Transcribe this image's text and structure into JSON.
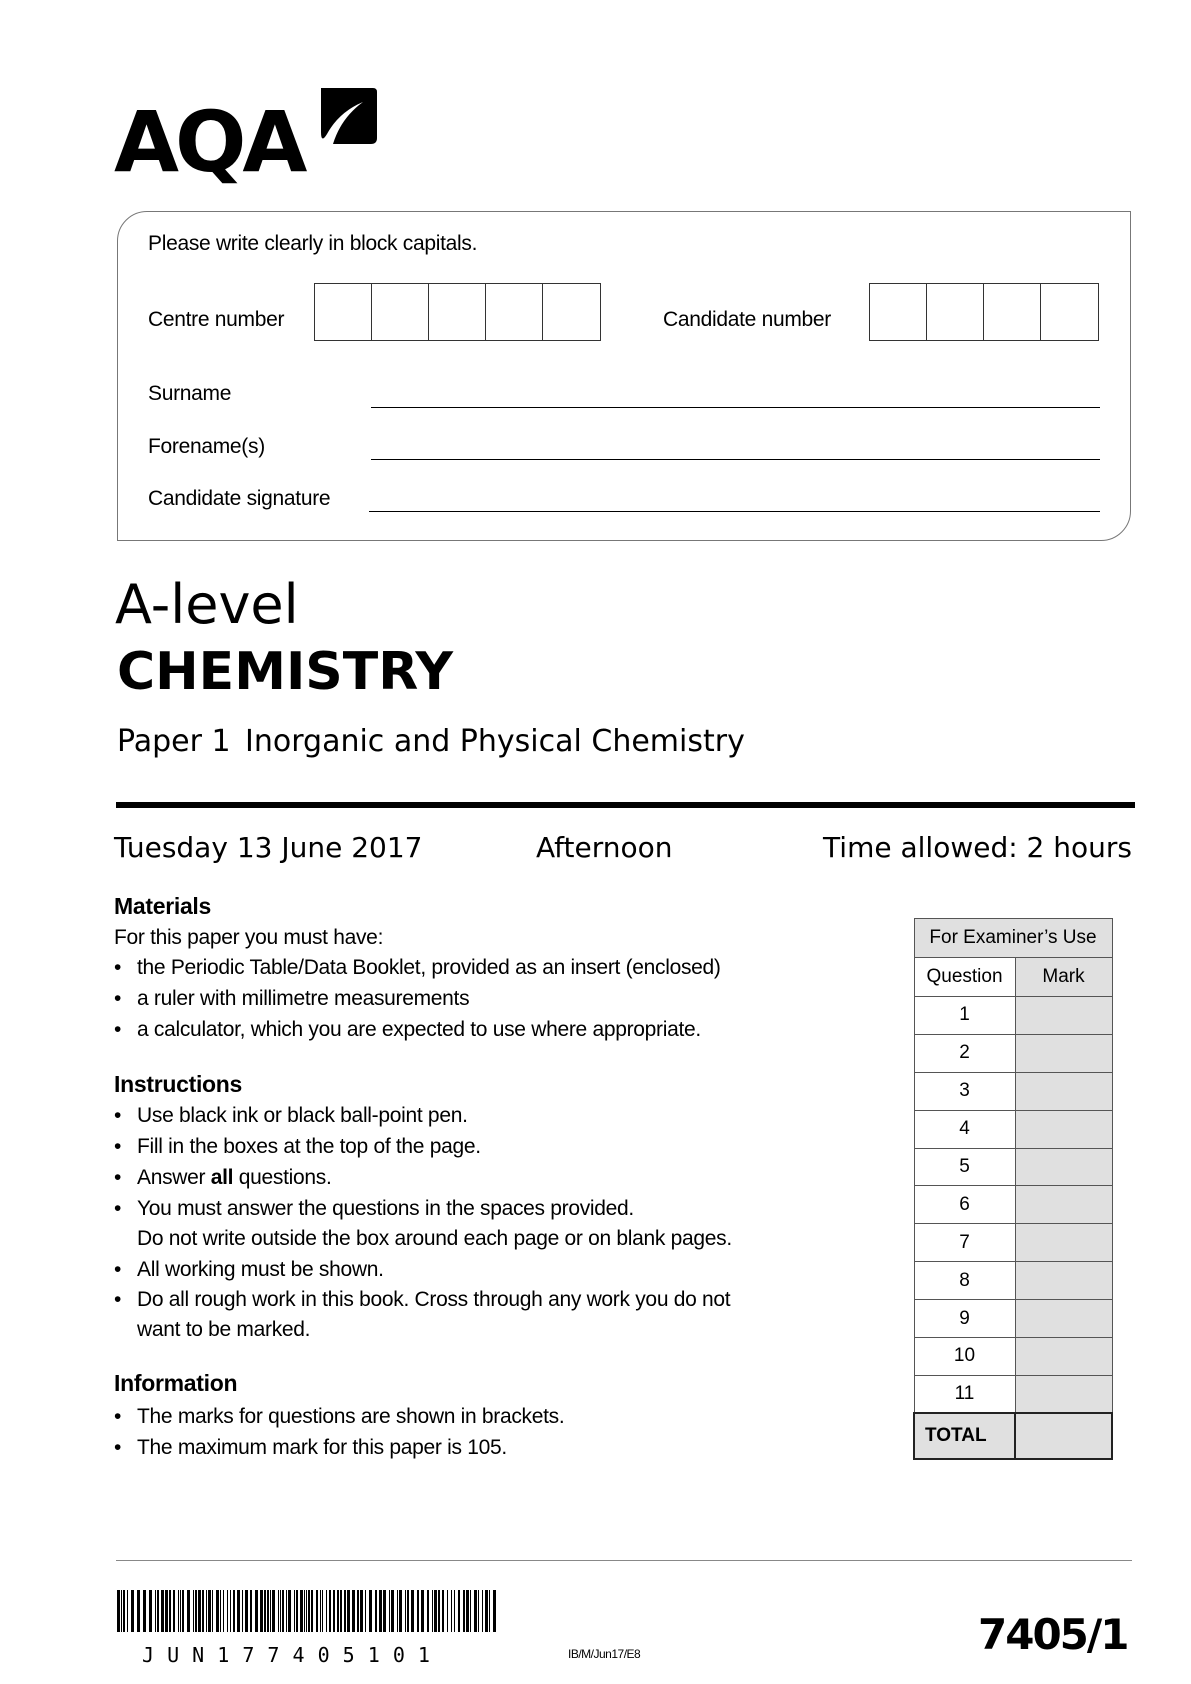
{
  "logo": {
    "text": "AQA"
  },
  "form": {
    "instruction": "Please write clearly in block capitals.",
    "centre_number_label": "Centre number",
    "candidate_number_label": "Candidate number",
    "surname_label": "Surname",
    "forenames_label": "Forename(s)",
    "signature_label": "Candidate signature"
  },
  "title": {
    "level": "A-level",
    "subject": "CHEMISTRY",
    "paper": "Paper 1",
    "paper_name": "Inorganic and Physical Chemistry"
  },
  "session": {
    "date": "Tuesday 13 June 2017",
    "time_of_day": "Afternoon",
    "time_allowed": "Time allowed: 2 hours"
  },
  "materials": {
    "heading": "Materials",
    "intro": "For this paper you must have:",
    "items": [
      "the Periodic Table/Data Booklet, provided as an insert (enclosed)",
      "a ruler with millimetre measurements",
      "a calculator, which you are expected to use where appropriate."
    ]
  },
  "instructions": {
    "heading": "Instructions",
    "items": [
      "Use black ink or black ball-point pen.",
      "Fill in the boxes at the top of the page.",
      {
        "pre": "Answer ",
        "bold": "all",
        "post": " questions."
      },
      "You must answer the questions in the spaces provided.",
      "Do not write outside the box around each page or on blank pages.",
      "All working must be shown.",
      "Do all rough work in this book.  Cross through any work you do not",
      "want to be marked."
    ]
  },
  "information": {
    "heading": "Information",
    "items": [
      "The marks for questions are shown in brackets.",
      "The maximum mark for this paper is 105."
    ]
  },
  "examiner_table": {
    "title": "For Examiner’s Use",
    "col_question": "Question",
    "col_mark": "Mark",
    "questions": [
      "1",
      "2",
      "3",
      "4",
      "5",
      "6",
      "7",
      "8",
      "9",
      "10",
      "11"
    ],
    "total_label": "TOTAL",
    "mark_fill_color": "#e0e0e0"
  },
  "footer": {
    "barcode_text": "J U N 1 7 7 4 0 5 1 0 1",
    "reference": "IB/M/Jun17/E8",
    "paper_code": "7405/1"
  }
}
